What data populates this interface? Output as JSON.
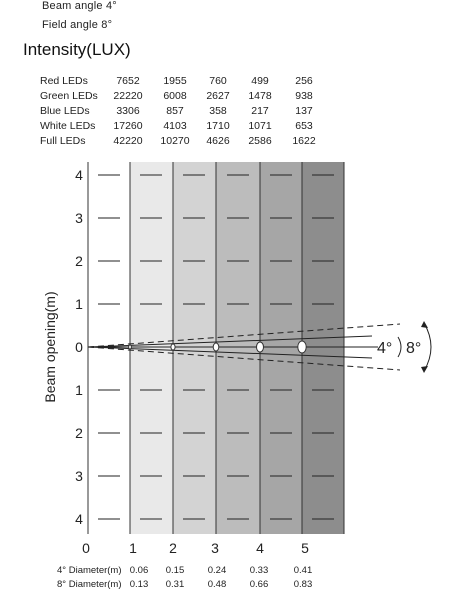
{
  "header": {
    "beam_angle": "Beam angle  4°",
    "field_angle": "Field angle  8°"
  },
  "title": "Intensity(LUX)",
  "intensity_table": {
    "rows": [
      {
        "label": "Red LEDs",
        "values": [
          "7652",
          "1955",
          "760",
          "499",
          "256"
        ]
      },
      {
        "label": "Green LEDs",
        "values": [
          "22220",
          "6008",
          "2627",
          "1478",
          "938"
        ]
      },
      {
        "label": "Blue LEDs",
        "values": [
          "3306",
          "857",
          "358",
          "217",
          "137"
        ]
      },
      {
        "label": "White LEDs",
        "values": [
          "17260",
          "4103",
          "1710",
          "1071",
          "653"
        ]
      },
      {
        "label": "Full LEDs",
        "values": [
          "42220",
          "10270",
          "4626",
          "2586",
          "1622"
        ]
      }
    ]
  },
  "diagram": {
    "y_axis_label": "Beam opening(m)",
    "y_ticks": [
      "4",
      "3",
      "2",
      "1",
      "0",
      "1",
      "2",
      "3",
      "4"
    ],
    "x_ticks": [
      "0",
      "1",
      "2",
      "3",
      "4",
      "5"
    ],
    "angle_labels": [
      "4°",
      "8°"
    ],
    "band_colors": [
      "#ffffff",
      "#e9e9e9",
      "#d3d3d3",
      "#bcbcbc",
      "#a6a6a6",
      "#8d8d8d"
    ]
  },
  "diameters": {
    "rows": [
      {
        "label": "4° Diameter(m)",
        "values": [
          "0.06",
          "0.15",
          "0.24",
          "0.33",
          "0.41"
        ]
      },
      {
        "label": "8° Diameter(m)",
        "values": [
          "0.13",
          "0.31",
          "0.48",
          "0.66",
          "0.83"
        ]
      }
    ]
  }
}
